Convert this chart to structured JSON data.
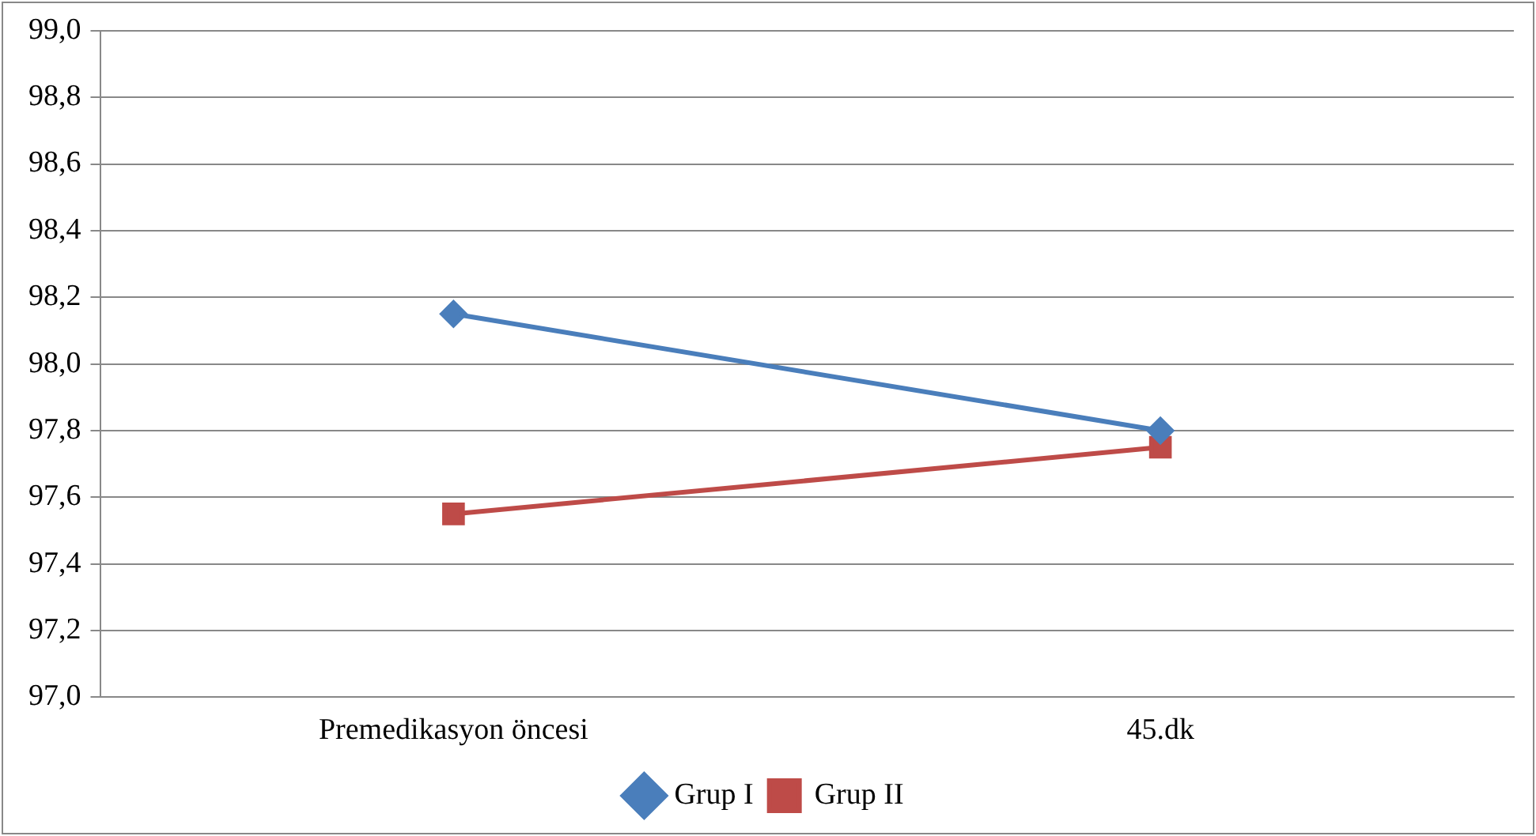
{
  "chart_data": {
    "type": "line",
    "categories": [
      "Premedikasyon öncesi",
      "45.dk"
    ],
    "series": [
      {
        "name": "Grup I",
        "color": "#4a7ebb",
        "values": [
          98.15,
          97.8
        ],
        "marker": "diamond"
      },
      {
        "name": "Grup II",
        "color": "#be4b48",
        "values": [
          97.55,
          97.75
        ],
        "marker": "square"
      }
    ],
    "ylim": [
      97.0,
      99.0
    ],
    "yticks": [
      {
        "value": 97.0,
        "label": "97,0"
      },
      {
        "value": 97.2,
        "label": "97,2"
      },
      {
        "value": 97.4,
        "label": "97,4"
      },
      {
        "value": 97.6,
        "label": "97,6"
      },
      {
        "value": 97.8,
        "label": "97,8"
      },
      {
        "value": 98.0,
        "label": "98,0"
      },
      {
        "value": 98.2,
        "label": "98,2"
      },
      {
        "value": 98.4,
        "label": "98,4"
      },
      {
        "value": 98.6,
        "label": "98,6"
      },
      {
        "value": 98.8,
        "label": "98,8"
      },
      {
        "value": 99.0,
        "label": "99,0"
      }
    ],
    "grid": "y",
    "legend": "bottom",
    "line_style": "solid"
  }
}
